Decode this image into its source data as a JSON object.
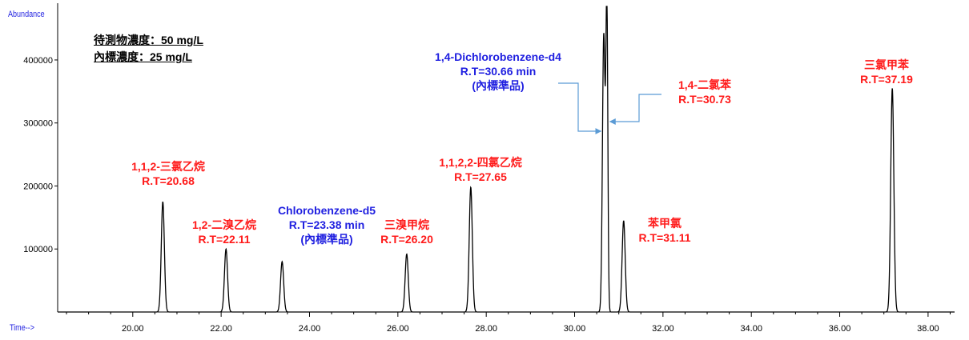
{
  "chart_data": {
    "type": "line",
    "ylabel": "Abundance",
    "xlabel": "Time-->",
    "xlim": [
      18.3,
      38.6
    ],
    "ylim": [
      0,
      485000
    ],
    "xticks": [
      "20.00",
      "22.00",
      "24.00",
      "26.00",
      "28.00",
      "30.00",
      "32.00",
      "34.00",
      "36.00",
      "38.00"
    ],
    "xtick_values": [
      20,
      22,
      24,
      26,
      28,
      30,
      32,
      34,
      36,
      38
    ],
    "yticks": [
      "100000",
      "200000",
      "300000",
      "400000"
    ],
    "ytick_values": [
      100000,
      200000,
      300000,
      400000
    ],
    "grid": false,
    "line_color": "#000000",
    "peaks": [
      {
        "rt": 20.68,
        "height": 175000,
        "width": 0.035
      },
      {
        "rt": 22.11,
        "height": 100000,
        "width": 0.035
      },
      {
        "rt": 23.38,
        "height": 80000,
        "width": 0.035
      },
      {
        "rt": 26.2,
        "height": 92000,
        "width": 0.035
      },
      {
        "rt": 27.65,
        "height": 198000,
        "width": 0.035
      },
      {
        "rt": 30.66,
        "height": 440000,
        "width": 0.03
      },
      {
        "rt": 30.73,
        "height": 485000,
        "width": 0.022
      },
      {
        "rt": 31.11,
        "height": 145000,
        "width": 0.035
      },
      {
        "rt": 37.19,
        "height": 355000,
        "width": 0.035
      }
    ],
    "annotations": {
      "a1": {
        "line1": "1,1,2-三氯乙烷",
        "line2": "R.T=20.68",
        "color": "#ff1a1a"
      },
      "a2": {
        "line1": "1,2-二溴乙烷",
        "line2": "R.T=22.11",
        "color": "#ff1a1a"
      },
      "a3": {
        "line1": "Chlorobenzene-d5",
        "line2": "R.T=23.38  min",
        "line3": "(內標準品)",
        "color": "#1f1fe0"
      },
      "a4": {
        "line1": "三溴甲烷",
        "line2": "R.T=26.20",
        "color": "#ff1a1a"
      },
      "a5": {
        "line1": "1,1,2,2-四氯乙烷",
        "line2": "R.T=27.65",
        "color": "#ff1a1a"
      },
      "a6": {
        "line1": "1,4-Dichlorobenzene-d4",
        "line2": "R.T=30.66  min",
        "line3": "(內標準品)",
        "color": "#1f1fe0"
      },
      "a7": {
        "line1": "1,4-二氯苯",
        "line2": "R.T=30.73",
        "color": "#ff1a1a"
      },
      "a8": {
        "line1": "苯甲氯",
        "line2": "R.T=31.11",
        "color": "#ff1a1a"
      },
      "a9": {
        "line1": "三氯甲苯",
        "line2": "R.T=37.19",
        "color": "#ff1a1a"
      }
    },
    "notes": {
      "line1": "待測物濃度：50 mg/L",
      "line2": "內標濃度：25 mg/L"
    },
    "arrow_color": "#5b9bd5"
  }
}
